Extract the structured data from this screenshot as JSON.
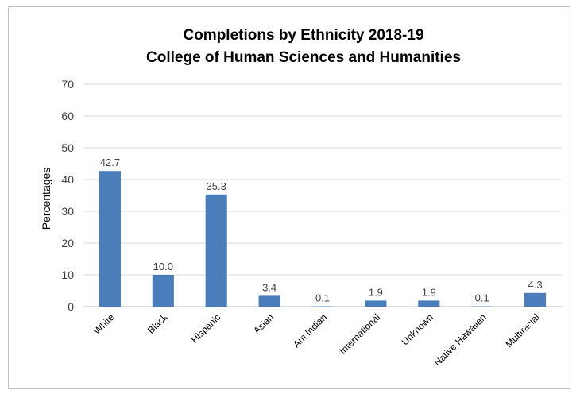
{
  "chart_data": {
    "type": "bar",
    "title_lines": [
      "Completions by Ethnicity 2018-19",
      "College of Human Sciences and Humanities"
    ],
    "xlabel": "",
    "ylabel": "Percentages",
    "ylim": [
      0,
      70
    ],
    "yticks": [
      0,
      10,
      20,
      30,
      40,
      50,
      60,
      70
    ],
    "grid": true,
    "legend": "none",
    "categories": [
      "White",
      "Black",
      "Hispanic",
      "Asian",
      "Am Indian",
      "International",
      "Unknown",
      "Native Hawaiian",
      "Multiracial"
    ],
    "values": [
      42.7,
      10.0,
      35.3,
      3.4,
      0.1,
      1.9,
      1.9,
      0.1,
      4.3
    ],
    "value_labels": [
      "42.7",
      "10.0",
      "35.3",
      "3.4",
      "0.1",
      "1.9",
      "1.9",
      "0.1",
      "4.3"
    ],
    "bar_color": "#4a7ebb",
    "grid_color": "#d9d9d9",
    "axis_color": "#bfbfbf"
  }
}
